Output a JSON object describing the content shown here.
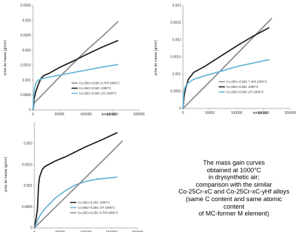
{
  "chart_data": [
    {
      "type": "line",
      "title": "",
      "xlabel": "temps (s)",
      "ylabel": "prise de masse (g/cm²)",
      "xlim": [
        0,
        200000
      ],
      "ylim": [
        0,
        0.0035
      ],
      "x_ticks": [
        "0",
        "50000",
        "100000",
        "150000",
        "200000"
      ],
      "y_ticks": [
        "0",
        "0.0005",
        "0.001",
        "0.0015",
        "0.002",
        "0.0025",
        "0.003",
        "0.0035"
      ],
      "legend_position": "center",
      "series": [
        {
          "name": "Co-25Cr-0.50C-0.7Hf 1000°C",
          "color": "#8a8a8a",
          "x": [
            0,
            2000,
            20000,
            50000,
            80000,
            100000,
            130000,
            160000
          ],
          "y": [
            0,
            0.00022,
            0.00055,
            0.0011,
            0.00163,
            0.00198,
            0.00245,
            0.00295
          ]
        },
        {
          "name": "Co-25Cr-0.50C 1000°C",
          "color": "#1a1a1a",
          "x": [
            0,
            2000,
            5000,
            10000,
            15000,
            20000,
            30000,
            50000,
            80000,
            100000,
            130000,
            160000
          ],
          "y": [
            0,
            0.00035,
            0.0006,
            0.00085,
            0.00105,
            0.00115,
            0.00122,
            0.00142,
            0.00167,
            0.00185,
            0.0021,
            0.00232
          ]
        },
        {
          "name": "Co-25Cr-0.50C-1Ti 1000°C",
          "color": "#63b4d8",
          "x": [
            0,
            1000,
            3000,
            6000,
            10000,
            20000,
            40000,
            70000,
            100000,
            130000,
            160000
          ],
          "y": [
            0,
            0.00045,
            0.00075,
            0.00092,
            0.001,
            0.00106,
            0.00113,
            0.00123,
            0.00133,
            0.00143,
            0.00152
          ]
        }
      ]
    },
    {
      "type": "line",
      "title": "",
      "xlabel": "temps (s)",
      "ylabel": "prise de masse (g/cm²)",
      "xlim": [
        0,
        200000
      ],
      "ylim": [
        0,
        0.003
      ],
      "x_ticks": [
        "0",
        "50000",
        "100000",
        "150000",
        "200000"
      ],
      "y_ticks": [
        "0",
        "0.0005",
        "0.001",
        "0.0015",
        "0.002",
        "0.0025",
        "0.003"
      ],
      "legend_position": "center",
      "series": [
        {
          "name": "Co-25Cr-0.50C-7.4Hf 1000°C",
          "color": "#8a8a8a",
          "x": [
            0,
            50000,
            100000,
            150000,
            165000
          ],
          "y": [
            0,
            0.00078,
            0.00158,
            0.00238,
            0.00262
          ]
        },
        {
          "name": "Co-25Cr-0.50C 1000°C",
          "color": "#1a1a1a",
          "x": [
            0,
            2000,
            5000,
            10000,
            20000,
            40000,
            60000,
            80000,
            100000,
            130000,
            160000
          ],
          "y": [
            0,
            0.00035,
            0.0006,
            0.00085,
            0.00105,
            0.00122,
            0.00142,
            0.00162,
            0.00182,
            0.0021,
            0.00235
          ]
        },
        {
          "name": "Co-25Cr-0.50C-2Ti 1000°C",
          "color": "#63b4d8",
          "x": [
            0,
            1000,
            3000,
            6000,
            10000,
            20000,
            40000,
            70000,
            100000,
            130000,
            160000
          ],
          "y": [
            0,
            0.0004,
            0.00058,
            0.00068,
            0.00075,
            0.00085,
            0.00095,
            0.00108,
            0.00122,
            0.00132,
            0.00142
          ]
        }
      ]
    },
    {
      "type": "line",
      "title": "",
      "xlabel": "",
      "ylabel": "prise de masse (g/cm²)",
      "xlim": [
        0,
        200000
      ],
      "ylim": [
        0,
        0.0025
      ],
      "x_ticks": [
        "0",
        "50000",
        "100000",
        "150000",
        "200000"
      ],
      "y_ticks": [
        "0",
        "0.0005",
        "0.001",
        "0.0015",
        "0.002"
      ],
      "legend_position": "bottom-right",
      "series": [
        {
          "name": "Co-25Cr-0.25C 1000°C",
          "color": "#1a1a1a",
          "x": [
            0,
            3000,
            6000,
            8000,
            10000,
            15000,
            20000,
            40000,
            60000,
            80000,
            100000,
            130000,
            160000
          ],
          "y": [
            0,
            0.0002,
            0.00045,
            0.001,
            0.0012,
            0.00138,
            0.00145,
            0.00158,
            0.00168,
            0.0018,
            0.00192,
            0.00208,
            0.00225
          ]
        },
        {
          "name": "Co-25Cr-0.25C-1Ti 1000°C",
          "color": "#63b4d8",
          "x": [
            0,
            5000,
            10000,
            20000,
            40000,
            60000,
            80000,
            100000,
            120000,
            160000
          ],
          "y": [
            0,
            0.00015,
            0.00028,
            0.00045,
            0.0007,
            0.00088,
            0.00102,
            0.0011,
            0.00115,
            0.0012
          ]
        },
        {
          "name": "Co-25Cr-0.25C-3.7Hf 1000°C",
          "color": "#8a8a8a",
          "x": [
            0,
            50000,
            100000,
            150000,
            170000
          ],
          "y": [
            0,
            0.0006,
            0.0012,
            0.0018,
            0.00205
          ]
        }
      ]
    }
  ],
  "caption": [
    "The mass gain curves",
    "obtained at 1000°C",
    "in drysynthetic air;",
    "comparison with the similar",
    "Co-25Cr-xC and Co-25Cr-xC-yHf alloys",
    "(same C content and same atomic",
    "content",
    "of MC-former M element)"
  ]
}
